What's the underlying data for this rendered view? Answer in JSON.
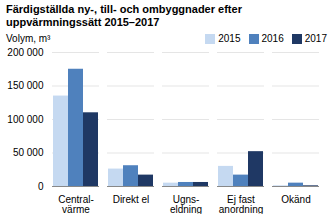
{
  "chart_data": {
    "type": "bar",
    "title": "Färdigställda ny-, till- och ombyggnader efter\nuppvärmningssätt 2015–2017",
    "ylabel": "Volym, m³",
    "categories": [
      "Central-\nvärme",
      "Direkt el",
      "Ugns-\neldning",
      "Ej fast\nanordning",
      "Okänd"
    ],
    "series": [
      {
        "name": "2015",
        "color": "#c5d9f1",
        "values": [
          135000,
          26000,
          5000,
          30000,
          1000
        ]
      },
      {
        "name": "2016",
        "color": "#4f81bd",
        "values": [
          175000,
          31000,
          6000,
          17000,
          5000
        ]
      },
      {
        "name": "2017",
        "color": "#1f3864",
        "values": [
          110000,
          17000,
          6000,
          52000,
          1000
        ]
      }
    ],
    "ylim": [
      0,
      200000
    ],
    "yticks": [
      0,
      {
        "value": 50000,
        "label": "50 000"
      },
      {
        "value": 100000,
        "label": "100 000"
      },
      {
        "value": 150000,
        "label": "150 000"
      },
      {
        "value": 200000,
        "label": "200 000"
      }
    ],
    "grid": true,
    "legend": "upper right"
  }
}
